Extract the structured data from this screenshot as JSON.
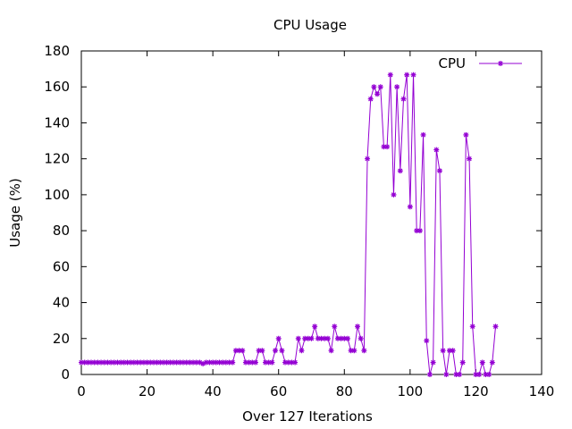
{
  "chart_data": {
    "type": "line",
    "title": "CPU Usage",
    "xlabel": "Over 127 Iterations",
    "ylabel": "Usage (%)",
    "xlim": [
      0,
      140
    ],
    "ylim": [
      0,
      180
    ],
    "xticks": [
      0,
      20,
      40,
      60,
      80,
      100,
      120,
      140
    ],
    "yticks": [
      0,
      20,
      40,
      60,
      80,
      100,
      120,
      140,
      160,
      180
    ],
    "xtick_labels": [
      "0",
      "20",
      "40",
      "60",
      "80",
      "100",
      "120",
      "140"
    ],
    "ytick_labels": [
      "0",
      "20",
      "40",
      "60",
      "80",
      "100",
      "120",
      "140",
      "160",
      "180"
    ],
    "grid": false,
    "legend_position": "top-right",
    "marker": "asterisk",
    "series": [
      {
        "name": "CPU",
        "color": "#9400d3",
        "x": [
          0,
          1,
          2,
          3,
          4,
          5,
          6,
          7,
          8,
          9,
          10,
          11,
          12,
          13,
          14,
          15,
          16,
          17,
          18,
          19,
          20,
          21,
          22,
          23,
          24,
          25,
          26,
          27,
          28,
          29,
          30,
          31,
          32,
          33,
          34,
          35,
          36,
          37,
          38,
          39,
          40,
          41,
          42,
          43,
          44,
          45,
          46,
          47,
          48,
          49,
          50,
          51,
          52,
          53,
          54,
          55,
          56,
          57,
          58,
          59,
          60,
          61,
          62,
          63,
          64,
          65,
          66,
          67,
          68,
          69,
          70,
          71,
          72,
          73,
          74,
          75,
          76,
          77,
          78,
          79,
          80,
          81,
          82,
          83,
          84,
          85,
          86,
          87,
          88,
          89,
          90,
          91,
          92,
          93,
          94,
          95,
          96,
          97,
          98,
          99,
          100,
          101,
          102,
          103,
          104,
          105,
          106,
          107,
          108,
          109,
          110,
          111,
          112,
          113,
          114,
          115,
          116,
          117,
          118,
          119,
          120,
          121,
          122,
          123,
          124,
          125,
          126
        ],
        "values": [
          6.7,
          6.7,
          6.7,
          6.7,
          6.7,
          6.7,
          6.7,
          6.7,
          6.7,
          6.7,
          6.7,
          6.7,
          6.7,
          6.7,
          6.7,
          6.7,
          6.7,
          6.7,
          6.7,
          6.7,
          6.7,
          6.7,
          6.7,
          6.7,
          6.7,
          6.7,
          6.7,
          6.7,
          6.7,
          6.7,
          6.7,
          6.7,
          6.7,
          6.7,
          6.7,
          6.7,
          6.7,
          6,
          6.7,
          6.7,
          6.7,
          6.7,
          6.7,
          6.7,
          6.7,
          6.7,
          6.7,
          13.3,
          13.3,
          13.3,
          6.7,
          6.7,
          6.7,
          6.7,
          13.3,
          13.3,
          6.7,
          6.7,
          6.7,
          13.3,
          20,
          13.3,
          6.7,
          6.7,
          6.7,
          6.7,
          20,
          13.3,
          20,
          20,
          20,
          26.7,
          20,
          20,
          20,
          20,
          13.3,
          26.7,
          20,
          20,
          20,
          20,
          13.3,
          13.3,
          26.7,
          20,
          13.3,
          120,
          153.3,
          160,
          156,
          160,
          126.7,
          126.7,
          166.7,
          100,
          160,
          113.3,
          153.3,
          166.7,
          93.3,
          166.7,
          80,
          80,
          133.3,
          18.8,
          0,
          6.7,
          125,
          113.3,
          13.3,
          0,
          13.3,
          13.3,
          0,
          0,
          6.7,
          133.3,
          120,
          26.7,
          0,
          0,
          6.7,
          0,
          0,
          6.7,
          26.7
        ]
      }
    ]
  }
}
